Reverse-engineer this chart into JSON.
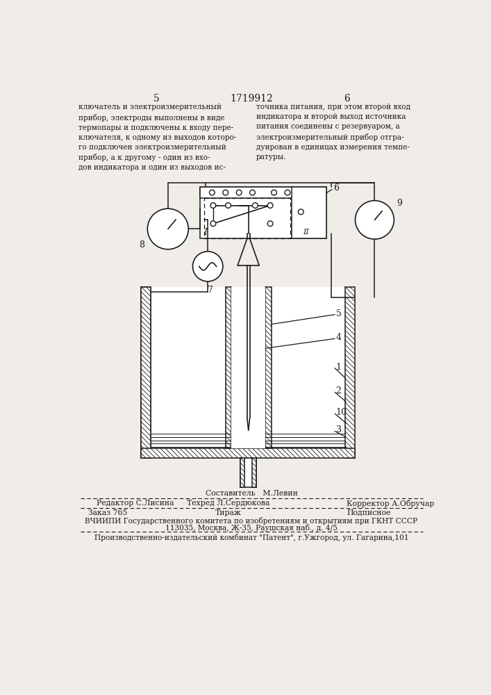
{
  "page_number_left": "5",
  "page_number_center": "1719912",
  "page_number_right": "6",
  "text_left": "ключатель и электроизмерительный\nприбор, электроды выполнены в виде\nтермопары и подключены к входу пере-\nключателя, к одному из выходов которо-\nго подключен электроизмерительный\nприбор, а к другому - один из вхо-\nдов индикатора и один из выходов ис-",
  "text_right": "точника питания, при этом второй вход\nиндикатора и второй выход источника\nпитания соединены с резервуаром, а\nэлектроизмерительный прибор отгра-\nдуирован в единицах измерения темпе-\nратуры.",
  "footer_sestavitel": "Составитель   М.Левин",
  "footer_line1_col1": "Редактор С.Лисина",
  "footer_line1_col2": "Техред Л.Сердюкова",
  "footer_line1_col3": "Корректор А.Обручар",
  "footer_line2_col1": "Заказ 765",
  "footer_line2_col2": "Тираж",
  "footer_line2_col3": "Подписное",
  "footer_line3": "ВЧИИПИ Государственного комитета по изобретениям и открытиям при ГКНТ СССР",
  "footer_line4": "113035, Москва, Ж-35, Раушская наб., д. 4/5",
  "footer_line5": "Производственно-издательский комбинат \"Патент\", г.Ужгород, ул. Гагарина,101",
  "bg_color": "#f0ede8",
  "line_color": "#1a1a1a",
  "text_color": "#1a1a1a"
}
